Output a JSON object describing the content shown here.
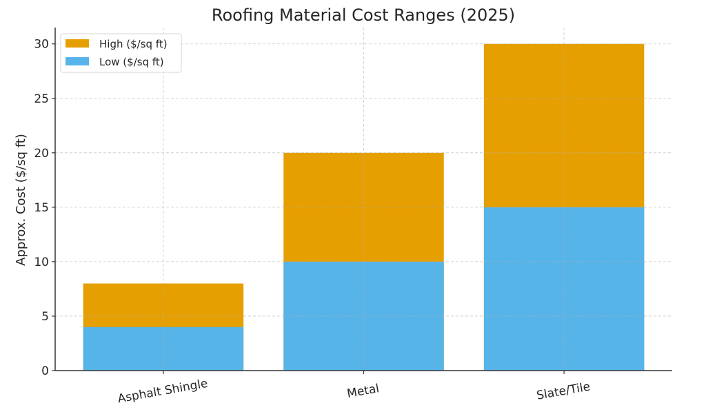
{
  "chart_data": {
    "type": "bar",
    "title": "Roofing Material Cost Ranges (2025)",
    "xlabel": "",
    "ylabel": "Approx. Cost ($/sq ft)",
    "categories": [
      "Asphalt Shingle",
      "Metal",
      "Slate/Tile"
    ],
    "series": [
      {
        "name": "High ($/sq ft)",
        "values": [
          8,
          20,
          30
        ],
        "color": "#E69F00"
      },
      {
        "name": "Low ($/sq ft)",
        "values": [
          4,
          10,
          15
        ],
        "color": "#56B4E9"
      }
    ],
    "ylim": [
      0,
      31.5
    ],
    "yticks": [
      0,
      5,
      10,
      15,
      20,
      25,
      30
    ],
    "grid": true,
    "legend": "top-left"
  }
}
